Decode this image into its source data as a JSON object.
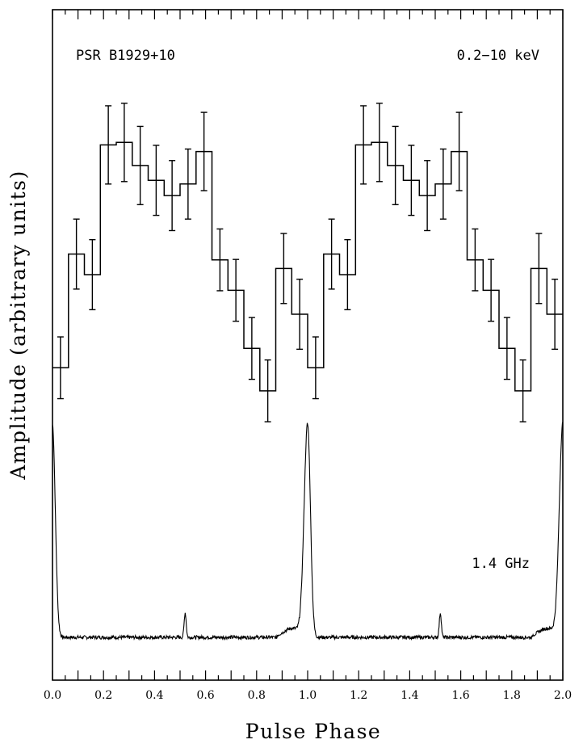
{
  "chart_data": {
    "type": "line",
    "xlabel": "Pulse Phase",
    "ylabel": "Amplitude (arbitrary units)",
    "xlim": [
      0.0,
      2.0
    ],
    "ylim": [
      0,
      1
    ],
    "y_tick_labels": false,
    "grid": false,
    "x_ticks": [
      0.0,
      0.2,
      0.4,
      0.6,
      0.8,
      1.0,
      1.2,
      1.4,
      1.6,
      1.8,
      2.0
    ],
    "x_tick_labels": [
      "0.0",
      "0.2",
      "0.4",
      "0.6",
      "0.8",
      "1.0",
      "1.2",
      "1.4",
      "1.6",
      "1.8",
      "2.0"
    ],
    "annotations": {
      "source": "PSR B1929+10",
      "xray_band": "0.2−10 keV",
      "radio_band": "1.4 GHz"
    },
    "series": [
      {
        "style": "histogram-with-errorbars",
        "bin_width": 0.0625,
        "x": [
          0.03125,
          0.09375,
          0.15625,
          0.21875,
          0.28125,
          0.34375,
          0.40625,
          0.46875,
          0.53125,
          0.59375,
          0.65625,
          0.71875,
          0.78125,
          0.84375,
          0.90625,
          0.96875,
          1.03125,
          1.09375,
          1.15625,
          1.21875,
          1.28125,
          1.34375,
          1.40625,
          1.46875,
          1.53125,
          1.59375,
          1.65625,
          1.71875,
          1.78125,
          1.84375,
          1.90625,
          1.96875
        ],
        "values": [
          0.17,
          0.446,
          0.396,
          0.711,
          0.717,
          0.661,
          0.625,
          0.588,
          0.616,
          0.695,
          0.432,
          0.358,
          0.217,
          0.114,
          0.411,
          0.3,
          0.17,
          0.446,
          0.396,
          0.711,
          0.717,
          0.661,
          0.625,
          0.588,
          0.616,
          0.695,
          0.432,
          0.358,
          0.217,
          0.114,
          0.411,
          0.3
        ],
        "errors": [
          0.075,
          0.085,
          0.085,
          0.095,
          0.095,
          0.095,
          0.085,
          0.085,
          0.085,
          0.095,
          0.075,
          0.075,
          0.075,
          0.075,
          0.085,
          0.085,
          0.075,
          0.085,
          0.085,
          0.095,
          0.095,
          0.095,
          0.085,
          0.085,
          0.085,
          0.095,
          0.075,
          0.075,
          0.075,
          0.075,
          0.085,
          0.085
        ]
      },
      {
        "style": "line",
        "main_peak_phases": [
          0.0,
          1.0,
          2.0
        ],
        "main_peak_amplitude": 0.95,
        "main_peak_sigma": 0.011,
        "interpulse_phases": [
          0.52,
          1.52
        ],
        "interpulse_amplitude": 0.11,
        "baseline": 0.0,
        "noise_level": 0.008
      }
    ]
  }
}
